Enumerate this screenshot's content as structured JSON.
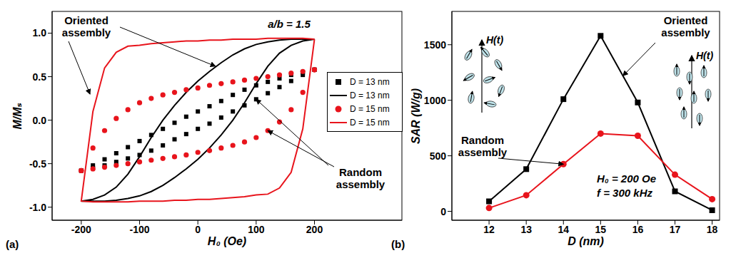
{
  "chart_data": [
    {
      "type": "scatter",
      "panel_label": "(a)",
      "x_label": "H₀ (Oe)",
      "y_label": "M/Mₛ",
      "annotations": [
        "Oriented assembly",
        "Random assembly",
        "a/b = 1.5"
      ],
      "xlim": [
        -250,
        350
      ],
      "xticks": [
        -200,
        -100,
        0,
        100,
        200
      ],
      "ylim": [
        -1.15,
        1.25
      ],
      "yticks": [
        {
          "value": -1,
          "label": "-1.0"
        },
        {
          "value": -0.5,
          "label": "-0.5"
        },
        {
          "value": 0,
          "label": "0.0"
        },
        {
          "value": 0.5,
          "label": "0.5"
        },
        {
          "value": 1,
          "label": "1.0"
        }
      ],
      "legend": "right",
      "series": [
        {
          "name": "D = 13 nm",
          "type": "scatter",
          "marker": "square",
          "color": "#000000",
          "x": [
            200,
            180,
            160,
            140,
            120,
            100,
            80,
            60,
            40,
            20,
            0,
            -20,
            -40,
            -60,
            -80,
            -100,
            -120,
            -140,
            -160,
            -180,
            -200,
            -200,
            -180,
            -160,
            -140,
            -120,
            -100,
            -80,
            -60,
            -40,
            -20,
            0,
            20,
            40,
            60,
            80,
            100,
            120,
            140,
            160,
            180,
            200
          ],
          "values": [
            0.58,
            0.55,
            0.52,
            0.48,
            0.44,
            0.4,
            0.35,
            0.29,
            0.22,
            0.16,
            0.1,
            0.04,
            -0.03,
            -0.1,
            -0.17,
            -0.24,
            -0.31,
            -0.38,
            -0.45,
            -0.52,
            -0.58,
            -0.58,
            -0.55,
            -0.52,
            -0.48,
            -0.44,
            -0.4,
            -0.35,
            -0.29,
            -0.22,
            -0.16,
            -0.1,
            -0.04,
            0.03,
            0.1,
            0.17,
            0.24,
            0.31,
            0.38,
            0.45,
            0.52,
            0.58
          ]
        },
        {
          "name": "D = 13 nm",
          "type": "line",
          "color": "#000000",
          "x": [
            200,
            180,
            160,
            140,
            120,
            100,
            80,
            60,
            40,
            20,
            0,
            -20,
            -40,
            -60,
            -80,
            -100,
            -120,
            -140,
            -160,
            -180,
            -200,
            -200,
            -180,
            -160,
            -140,
            -120,
            -100,
            -80,
            -60,
            -40,
            -20,
            0,
            20,
            40,
            60,
            80,
            100,
            120,
            140,
            160,
            180,
            200
          ],
          "values": [
            0.93,
            0.93,
            0.93,
            0.92,
            0.9,
            0.87,
            0.82,
            0.75,
            0.66,
            0.56,
            0.45,
            0.32,
            0.17,
            0.0,
            -0.2,
            -0.42,
            -0.62,
            -0.77,
            -0.86,
            -0.91,
            -0.93,
            -0.93,
            -0.93,
            -0.93,
            -0.92,
            -0.9,
            -0.87,
            -0.82,
            -0.75,
            -0.66,
            -0.56,
            -0.45,
            -0.32,
            -0.17,
            0.0,
            0.2,
            0.42,
            0.62,
            0.77,
            0.86,
            0.91,
            0.93
          ]
        },
        {
          "name": "D = 15 nm",
          "type": "scatter",
          "marker": "circle",
          "color": "#e8141c",
          "x": [
            200,
            180,
            160,
            140,
            120,
            100,
            80,
            60,
            40,
            20,
            0,
            -20,
            -40,
            -60,
            -80,
            -100,
            -120,
            -140,
            -160,
            -180,
            -200,
            -200,
            -180,
            -160,
            -140,
            -120,
            -100,
            -80,
            -60,
            -40,
            -20,
            0,
            20,
            40,
            60,
            80,
            100,
            120,
            140,
            160,
            180,
            200
          ],
          "values": [
            0.58,
            0.56,
            0.54,
            0.52,
            0.5,
            0.48,
            0.46,
            0.44,
            0.42,
            0.4,
            0.37,
            0.35,
            0.32,
            0.29,
            0.25,
            0.2,
            0.12,
            0.02,
            -0.12,
            -0.32,
            -0.58,
            -0.58,
            -0.56,
            -0.54,
            -0.52,
            -0.5,
            -0.48,
            -0.46,
            -0.44,
            -0.42,
            -0.4,
            -0.37,
            -0.35,
            -0.32,
            -0.29,
            -0.25,
            -0.2,
            -0.12,
            -0.02,
            0.12,
            0.32,
            0.58
          ]
        },
        {
          "name": "D = 15 nm",
          "type": "line",
          "color": "#e8141c",
          "x": [
            200,
            180,
            160,
            140,
            120,
            100,
            80,
            60,
            40,
            20,
            0,
            -20,
            -40,
            -60,
            -80,
            -100,
            -120,
            -140,
            -160,
            -180,
            -200,
            -200,
            -180,
            -160,
            -140,
            -120,
            -100,
            -80,
            -60,
            -40,
            -20,
            0,
            20,
            40,
            60,
            80,
            100,
            120,
            140,
            160,
            180,
            200
          ],
          "values": [
            0.93,
            0.94,
            0.94,
            0.94,
            0.94,
            0.93,
            0.93,
            0.93,
            0.92,
            0.92,
            0.91,
            0.91,
            0.9,
            0.89,
            0.88,
            0.86,
            0.85,
            0.78,
            0.6,
            0.1,
            -0.93,
            -0.93,
            -0.94,
            -0.94,
            -0.94,
            -0.94,
            -0.93,
            -0.93,
            -0.93,
            -0.92,
            -0.92,
            -0.91,
            -0.91,
            -0.9,
            -0.89,
            -0.88,
            -0.86,
            -0.85,
            -0.78,
            -0.6,
            -0.1,
            0.93
          ]
        }
      ]
    },
    {
      "type": "line",
      "panel_label": "(b)",
      "x_label": "D (nm)",
      "y_label": "SAR  (W/g)",
      "annotations": [
        "Oriented assembly",
        "Random assembly",
        "H₀ = 200 Oe",
        "f = 300 kHz",
        "H(t)",
        "H(t)"
      ],
      "xlim": [
        11,
        18.2
      ],
      "xticks": [
        12,
        13,
        14,
        15,
        16,
        17,
        18
      ],
      "ylim": [
        -80,
        1800
      ],
      "yticks": [
        0,
        500,
        1000,
        1500
      ],
      "series": [
        {
          "name": "Oriented assembly",
          "color": "#000000",
          "marker": "square",
          "x": [
            12,
            13,
            14,
            15,
            16,
            17,
            18
          ],
          "values": [
            90,
            380,
            1010,
            1580,
            980,
            180,
            10
          ]
        },
        {
          "name": "Random assembly",
          "color": "#e8141c",
          "marker": "circle",
          "x": [
            12,
            13,
            14,
            15,
            16,
            17,
            18
          ],
          "values": [
            30,
            145,
            425,
            700,
            680,
            330,
            110
          ]
        }
      ]
    }
  ]
}
